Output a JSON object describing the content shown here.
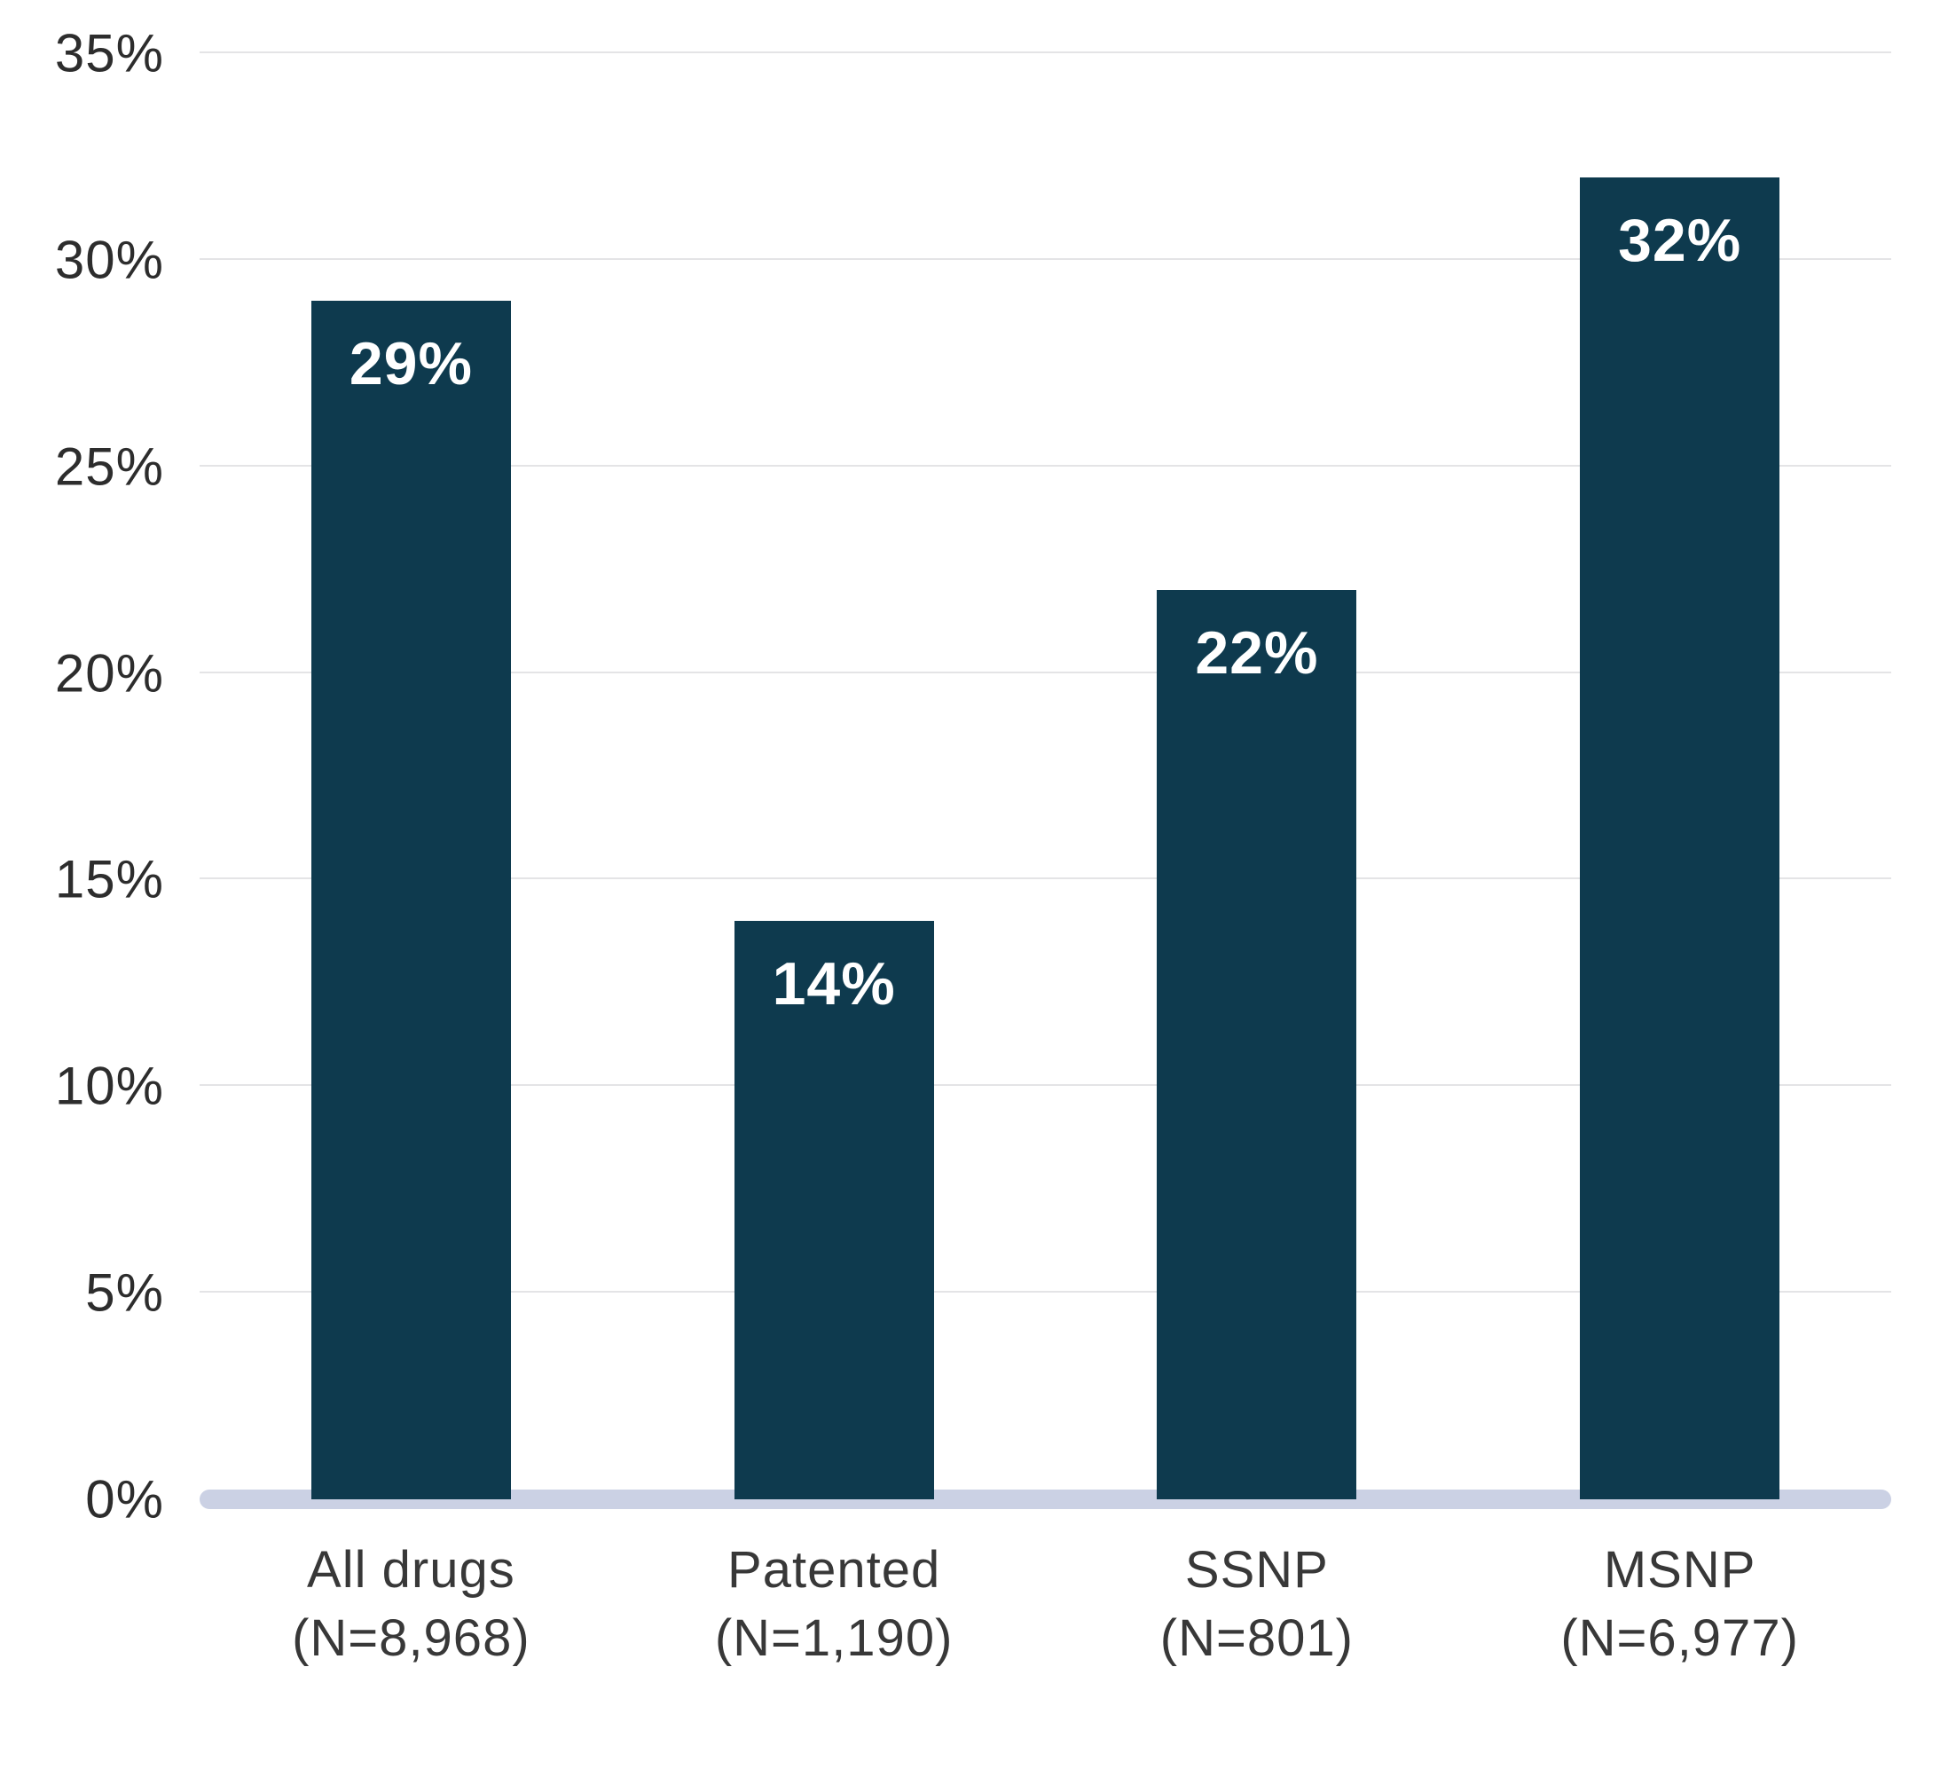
{
  "chart_data": {
    "type": "bar",
    "title": "",
    "xlabel": "",
    "ylabel": "",
    "grid": true,
    "legend": false,
    "y_axis": {
      "ticks": [
        "0%",
        "5%",
        "10%",
        "15%",
        "20%",
        "25%",
        "30%",
        "35%"
      ],
      "tick_values": [
        0,
        5,
        10,
        15,
        20,
        25,
        30,
        35
      ],
      "max": 35
    },
    "categories": [
      "All drugs (N=8,968)",
      "Patented (N=1,190)",
      "SSNP (N=801)",
      "MSNP (N=6,977)"
    ],
    "values": [
      29,
      14,
      22,
      32
    ],
    "bars": [
      {
        "label_line1": "All drugs",
        "label_line2": "(N=8,968)",
        "value": 29,
        "value_label": "29%"
      },
      {
        "label_line1": "Patented",
        "label_line2": "(N=1,190)",
        "value": 14,
        "value_label": "14%"
      },
      {
        "label_line1": "SSNP",
        "label_line2": "(N=801)",
        "value": 22,
        "value_label": "22%"
      },
      {
        "label_line1": "MSNP",
        "label_line2": "(N=6,977)",
        "value": 32,
        "value_label": "32%"
      }
    ],
    "colors": {
      "bar": "#0e3a4e",
      "value_label": "#ffffff",
      "baseline": "#cbd1e4",
      "gridline": "#e4e4e6",
      "axis_text": "#2d2d2d"
    }
  }
}
